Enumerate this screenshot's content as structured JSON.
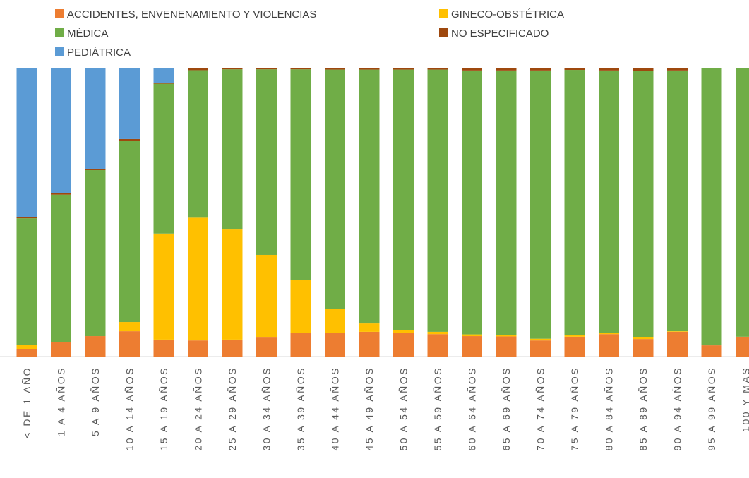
{
  "chart_data": {
    "type": "stacked_bar_100",
    "categories": [
      "< DE 1 AÑO",
      "1 A 4 AÑOS",
      "5 A 9 AÑOS",
      "10 A 14 AÑOS",
      "15 A 19 AÑOS",
      "20 A 24 AÑOS",
      "25 A 29 AÑOS",
      "30 A 34 AÑOS",
      "35 A 39 AÑOS",
      "40 A 44 AÑOS",
      "45 A 49 AÑOS",
      "50 A 54 AÑOS",
      "55 A 59 AÑOS",
      "60 A 64 AÑOS",
      "65 A 69 AÑOS",
      "70 A 74 AÑOS",
      "75 A 79 AÑOS",
      "80 A 84 AÑOS",
      "85 A 89 AÑOS",
      "90 A 94 AÑOS",
      "95 A 99 AÑOS",
      "100 Y MAS"
    ],
    "ylim": [
      0,
      100
    ],
    "series": [
      {
        "name": "ACCIDENTES, ENVENENAMIENTO Y VIOLENCIAS",
        "color": "#ED7D31",
        "values": [
          2.5,
          5,
          7.1,
          8.8,
          5.9,
          5.6,
          5.9,
          6.6,
          8.1,
          8.3,
          8.6,
          8.1,
          7.8,
          7.1,
          7,
          5.6,
          6.9,
          7.8,
          6.1,
          8.6,
          3.9,
          6.9
        ]
      },
      {
        "name": "GINECO-OBSTÉTRICA",
        "color": "#FFC000",
        "values": [
          1.5,
          0,
          0,
          3.2,
          36.8,
          42.6,
          38.2,
          28.7,
          18.6,
          8.3,
          2.9,
          1.2,
          0.8,
          0.6,
          0.6,
          0.6,
          0.5,
          0.3,
          0.6,
          0.2,
          0,
          0
        ]
      },
      {
        "name": "MÉDICA",
        "color": "#70AD47",
        "values": [
          44,
          51.2,
          57.6,
          63,
          52,
          51.2,
          55.6,
          64.4,
          73,
          83,
          88.1,
          90.3,
          91,
          91.6,
          91.7,
          93.1,
          92.1,
          91.2,
          92.5,
          90.5,
          96.1,
          93.1
        ]
      },
      {
        "name": "NO ESPECIFICADO",
        "color": "#9E480E",
        "values": [
          0.5,
          0.5,
          0.5,
          0.5,
          0.3,
          0.6,
          0.3,
          0.3,
          0.3,
          0.4,
          0.4,
          0.4,
          0.4,
          0.7,
          0.7,
          0.7,
          0.5,
          0.7,
          0.8,
          0.7,
          0,
          0
        ]
      },
      {
        "name": "PEDIÁTRICA",
        "color": "#5B9BD5",
        "values": [
          51.5,
          43.3,
          34.8,
          24.5,
          5,
          0,
          0,
          0,
          0,
          0,
          0,
          0,
          0,
          0,
          0,
          0,
          0,
          0,
          0,
          0,
          0,
          0
        ]
      }
    ]
  }
}
